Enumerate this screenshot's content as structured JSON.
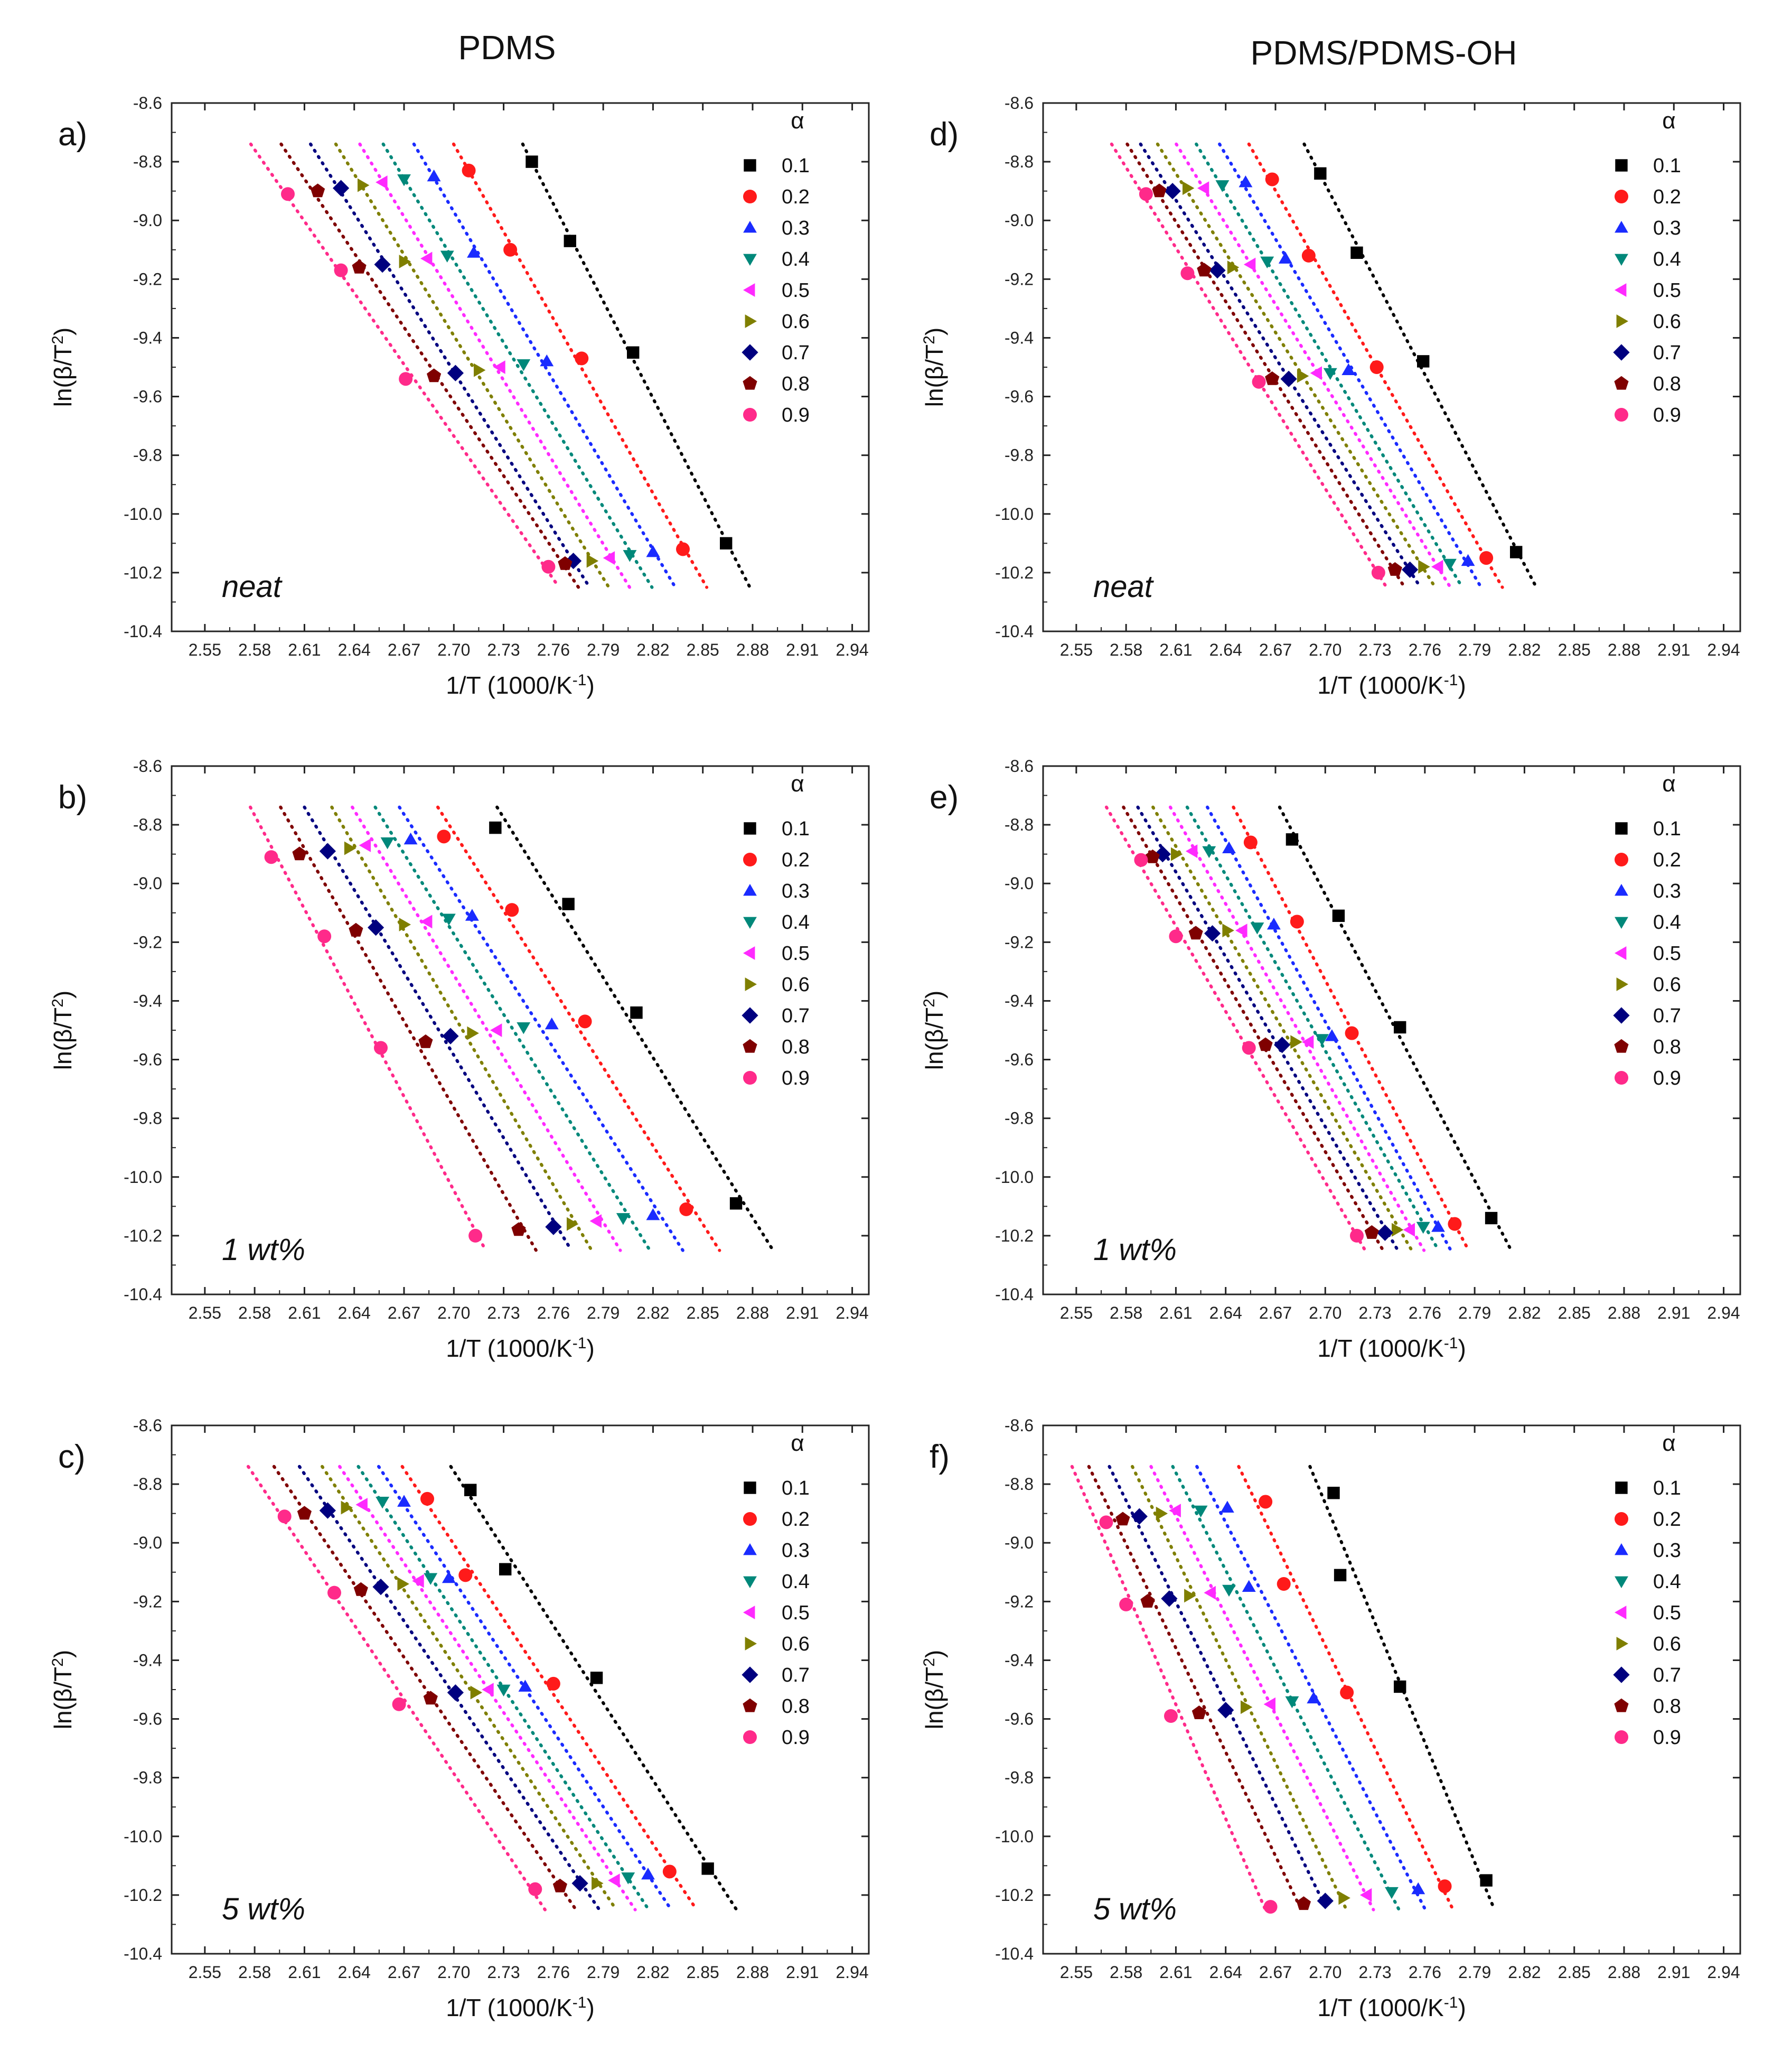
{
  "columns": [
    "PDMS",
    "PDMS/PDMS-OH"
  ],
  "legend": {
    "title": "α",
    "alpha": [
      "0.1",
      "0.2",
      "0.3",
      "0.4",
      "0.5",
      "0.6",
      "0.7",
      "0.8",
      "0.9"
    ],
    "colors": [
      "#000000",
      "#ff1a1a",
      "#1a2bff",
      "#00887a",
      "#ff2aff",
      "#7f7f00",
      "#00007f",
      "#7f0000",
      "#ff2a8a"
    ],
    "markers": [
      "square",
      "circle",
      "triangle-up",
      "triangle-down",
      "triangle-left",
      "triangle-right",
      "diamond",
      "pentagon",
      "circle"
    ]
  },
  "chart_data": [
    {
      "type": "scatter",
      "panel": "a)",
      "annotation": "neat",
      "column": 0,
      "row": 0,
      "xlabel": "1/T (1000/K-1)",
      "ylabel": "ln(β/T2)",
      "xlim": [
        2.53,
        2.95
      ],
      "ylim": [
        -10.4,
        -8.6
      ],
      "xticks": [
        "2.55",
        "2.58",
        "2.61",
        "2.64",
        "2.67",
        "2.70",
        "2.73",
        "2.76",
        "2.79",
        "2.82",
        "2.85",
        "2.88",
        "2.91",
        "2.94"
      ],
      "yticks": [
        "-8.6",
        "-8.8",
        "-9.0",
        "-9.2",
        "-9.4",
        "-9.6",
        "-9.8",
        "-10.0",
        "-10.2",
        "-10.4"
      ],
      "legend_position": "top-right",
      "series": [
        {
          "name": "0.1",
          "x": [
            2.747,
            2.77,
            2.808,
            2.864
          ],
          "y": [
            -8.8,
            -9.07,
            -9.45,
            -10.1
          ]
        },
        {
          "name": "0.2",
          "x": [
            2.709,
            2.734,
            2.777,
            2.838
          ],
          "y": [
            -8.83,
            -9.1,
            -9.47,
            -10.12
          ]
        },
        {
          "name": "0.3",
          "x": [
            2.688,
            2.712,
            2.756,
            2.82
          ],
          "y": [
            -8.85,
            -9.11,
            -9.48,
            -10.13
          ]
        },
        {
          "name": "0.4",
          "x": [
            2.67,
            2.696,
            2.742,
            2.806
          ],
          "y": [
            -8.86,
            -9.12,
            -9.49,
            -10.14
          ]
        },
        {
          "name": "0.5",
          "x": [
            2.657,
            2.684,
            2.728,
            2.794
          ],
          "y": [
            -8.87,
            -9.13,
            -9.5,
            -10.15
          ]
        },
        {
          "name": "0.6",
          "x": [
            2.645,
            2.67,
            2.715,
            2.783
          ],
          "y": [
            -8.88,
            -9.14,
            -9.51,
            -10.16
          ]
        },
        {
          "name": "0.7",
          "x": [
            2.632,
            2.657,
            2.701,
            2.772
          ],
          "y": [
            -8.89,
            -9.15,
            -9.52,
            -10.16
          ]
        },
        {
          "name": "0.8",
          "x": [
            2.618,
            2.643,
            2.688,
            2.767
          ],
          "y": [
            -8.9,
            -9.16,
            -9.53,
            -10.17
          ]
        },
        {
          "name": "0.9",
          "x": [
            2.6,
            2.632,
            2.671,
            2.757
          ],
          "y": [
            -8.91,
            -9.17,
            -9.54,
            -10.18
          ]
        }
      ]
    },
    {
      "type": "scatter",
      "panel": "b)",
      "annotation": "1 wt%",
      "column": 0,
      "row": 1,
      "xlabel": "1/T (1000/K-1)",
      "ylabel": "ln(β/T2)",
      "xlim": [
        2.53,
        2.95
      ],
      "ylim": [
        -10.4,
        -8.6
      ],
      "xticks": [
        "2.55",
        "2.58",
        "2.61",
        "2.64",
        "2.67",
        "2.70",
        "2.73",
        "2.76",
        "2.79",
        "2.82",
        "2.85",
        "2.88",
        "2.91",
        "2.94"
      ],
      "yticks": [
        "-8.6",
        "-8.8",
        "-9.0",
        "-9.2",
        "-9.4",
        "-9.6",
        "-9.8",
        "-10.0",
        "-10.2",
        "-10.4"
      ],
      "legend_position": "top-right",
      "series": [
        {
          "name": "0.1",
          "x": [
            2.725,
            2.769,
            2.81,
            2.87
          ],
          "y": [
            -8.81,
            -9.07,
            -9.44,
            -10.09
          ]
        },
        {
          "name": "0.2",
          "x": [
            2.694,
            2.735,
            2.779,
            2.84
          ],
          "y": [
            -8.84,
            -9.09,
            -9.47,
            -10.11
          ]
        },
        {
          "name": "0.3",
          "x": [
            2.674,
            2.711,
            2.759,
            2.82
          ],
          "y": [
            -8.85,
            -9.11,
            -9.48,
            -10.13
          ]
        },
        {
          "name": "0.4",
          "x": [
            2.66,
            2.697,
            2.742,
            2.802
          ],
          "y": [
            -8.86,
            -9.12,
            -9.49,
            -10.14
          ]
        },
        {
          "name": "0.5",
          "x": [
            2.647,
            2.684,
            2.726,
            2.786
          ],
          "y": [
            -8.87,
            -9.13,
            -9.5,
            -10.15
          ]
        },
        {
          "name": "0.6",
          "x": [
            2.637,
            2.67,
            2.711,
            2.771
          ],
          "y": [
            -8.88,
            -9.14,
            -9.51,
            -10.16
          ]
        },
        {
          "name": "0.7",
          "x": [
            2.624,
            2.653,
            2.698,
            2.76
          ],
          "y": [
            -8.89,
            -9.15,
            -9.52,
            -10.17
          ]
        },
        {
          "name": "0.8",
          "x": [
            2.607,
            2.641,
            2.683,
            2.739
          ],
          "y": [
            -8.9,
            -9.16,
            -9.54,
            -10.18
          ]
        },
        {
          "name": "0.9",
          "x": [
            2.59,
            2.622,
            2.656,
            2.713
          ],
          "y": [
            -8.91,
            -9.18,
            -9.56,
            -10.2
          ]
        }
      ]
    },
    {
      "type": "scatter",
      "panel": "c)",
      "annotation": "5 wt%",
      "column": 0,
      "row": 2,
      "xlabel": "1/T (1000/K-1)",
      "ylabel": "ln(β/T2)",
      "xlim": [
        2.53,
        2.95
      ],
      "ylim": [
        -10.4,
        -8.6
      ],
      "xticks": [
        "2.55",
        "2.58",
        "2.61",
        "2.64",
        "2.67",
        "2.70",
        "2.73",
        "2.76",
        "2.79",
        "2.82",
        "2.85",
        "2.88",
        "2.91",
        "2.94"
      ],
      "yticks": [
        "-8.6",
        "-8.8",
        "-9.0",
        "-9.2",
        "-9.4",
        "-9.6",
        "-9.8",
        "-10.0",
        "-10.2",
        "-10.4"
      ],
      "legend_position": "top-right",
      "series": [
        {
          "name": "0.1",
          "x": [
            2.71,
            2.731,
            2.786,
            2.853
          ],
          "y": [
            -8.82,
            -9.09,
            -9.46,
            -10.11
          ]
        },
        {
          "name": "0.2",
          "x": [
            2.684,
            2.707,
            2.76,
            2.83
          ],
          "y": [
            -8.85,
            -9.11,
            -9.48,
            -10.12
          ]
        },
        {
          "name": "0.3",
          "x": [
            2.67,
            2.697,
            2.743,
            2.817
          ],
          "y": [
            -8.86,
            -9.12,
            -9.49,
            -10.13
          ]
        },
        {
          "name": "0.4",
          "x": [
            2.657,
            2.686,
            2.73,
            2.805
          ],
          "y": [
            -8.86,
            -9.12,
            -9.5,
            -10.14
          ]
        },
        {
          "name": "0.5",
          "x": [
            2.645,
            2.679,
            2.721,
            2.797
          ],
          "y": [
            -8.87,
            -9.13,
            -9.5,
            -10.15
          ]
        },
        {
          "name": "0.6",
          "x": [
            2.635,
            2.669,
            2.713,
            2.786
          ],
          "y": [
            -8.88,
            -9.14,
            -9.51,
            -10.16
          ]
        },
        {
          "name": "0.7",
          "x": [
            2.624,
            2.656,
            2.701,
            2.776
          ],
          "y": [
            -8.89,
            -9.15,
            -9.51,
            -10.16
          ]
        },
        {
          "name": "0.8",
          "x": [
            2.61,
            2.644,
            2.686,
            2.764
          ],
          "y": [
            -8.9,
            -9.16,
            -9.53,
            -10.17
          ]
        },
        {
          "name": "0.9",
          "x": [
            2.598,
            2.628,
            2.667,
            2.749
          ],
          "y": [
            -8.91,
            -9.17,
            -9.55,
            -10.18
          ]
        }
      ]
    },
    {
      "type": "scatter",
      "panel": "d)",
      "annotation": "neat",
      "column": 1,
      "row": 0,
      "xlabel": "1/T (1000/K-1)",
      "ylabel": "ln(β/T2)",
      "xlim": [
        2.53,
        2.95
      ],
      "ylim": [
        -10.4,
        -8.6
      ],
      "xticks": [
        "2.55",
        "2.58",
        "2.61",
        "2.64",
        "2.67",
        "2.70",
        "2.73",
        "2.76",
        "2.79",
        "2.82",
        "2.85",
        "2.88",
        "2.91",
        "2.94"
      ],
      "yticks": [
        "-8.6",
        "-8.8",
        "-9.0",
        "-9.2",
        "-9.4",
        "-9.6",
        "-9.8",
        "-10.0",
        "-10.2",
        "-10.4"
      ],
      "legend_position": "top-right",
      "series": [
        {
          "name": "0.1",
          "x": [
            2.697,
            2.719,
            2.759,
            2.815
          ],
          "y": [
            -8.84,
            -9.11,
            -9.48,
            -10.13
          ]
        },
        {
          "name": "0.2",
          "x": [
            2.668,
            2.69,
            2.731,
            2.797
          ],
          "y": [
            -8.86,
            -9.12,
            -9.5,
            -10.15
          ]
        },
        {
          "name": "0.3",
          "x": [
            2.652,
            2.676,
            2.714,
            2.786
          ],
          "y": [
            -8.87,
            -9.13,
            -9.51,
            -10.16
          ]
        },
        {
          "name": "0.4",
          "x": [
            2.638,
            2.665,
            2.703,
            2.775
          ],
          "y": [
            -8.88,
            -9.14,
            -9.52,
            -10.17
          ]
        },
        {
          "name": "0.5",
          "x": [
            2.627,
            2.655,
            2.695,
            2.768
          ],
          "y": [
            -8.89,
            -9.15,
            -9.52,
            -10.18
          ]
        },
        {
          "name": "0.6",
          "x": [
            2.617,
            2.644,
            2.686,
            2.759
          ],
          "y": [
            -8.89,
            -9.16,
            -9.53,
            -10.18
          ]
        },
        {
          "name": "0.7",
          "x": [
            2.608,
            2.635,
            2.678,
            2.751
          ],
          "y": [
            -8.9,
            -9.17,
            -9.54,
            -10.19
          ]
        },
        {
          "name": "0.8",
          "x": [
            2.6,
            2.627,
            2.668,
            2.742
          ],
          "y": [
            -8.9,
            -9.17,
            -9.54,
            -10.19
          ]
        },
        {
          "name": "0.9",
          "x": [
            2.592,
            2.617,
            2.66,
            2.732
          ],
          "y": [
            -8.91,
            -9.18,
            -9.55,
            -10.2
          ]
        }
      ]
    },
    {
      "type": "scatter",
      "panel": "e)",
      "annotation": "1 wt%",
      "column": 1,
      "row": 1,
      "xlabel": "1/T (1000/K-1)",
      "ylabel": "ln(β/T2)",
      "xlim": [
        2.53,
        2.95
      ],
      "ylim": [
        -10.4,
        -8.6
      ],
      "xticks": [
        "2.55",
        "2.58",
        "2.61",
        "2.64",
        "2.67",
        "2.70",
        "2.73",
        "2.76",
        "2.79",
        "2.82",
        "2.85",
        "2.88",
        "2.91",
        "2.94"
      ],
      "yticks": [
        "-8.6",
        "-8.8",
        "-9.0",
        "-9.2",
        "-9.4",
        "-9.6",
        "-9.8",
        "-10.0",
        "-10.2",
        "-10.4"
      ],
      "legend_position": "top-right",
      "series": [
        {
          "name": "0.1",
          "x": [
            2.68,
            2.708,
            2.745,
            2.8
          ],
          "y": [
            -8.85,
            -9.11,
            -9.49,
            -10.14
          ]
        },
        {
          "name": "0.2",
          "x": [
            2.655,
            2.683,
            2.716,
            2.778
          ],
          "y": [
            -8.86,
            -9.13,
            -9.51,
            -10.16
          ]
        },
        {
          "name": "0.3",
          "x": [
            2.642,
            2.669,
            2.704,
            2.768
          ],
          "y": [
            -8.88,
            -9.14,
            -9.52,
            -10.17
          ]
        },
        {
          "name": "0.4",
          "x": [
            2.63,
            2.659,
            2.698,
            2.759
          ],
          "y": [
            -8.89,
            -9.15,
            -9.53,
            -10.17
          ]
        },
        {
          "name": "0.5",
          "x": [
            2.62,
            2.65,
            2.69,
            2.751
          ],
          "y": [
            -8.89,
            -9.16,
            -9.54,
            -10.18
          ]
        },
        {
          "name": "0.6",
          "x": [
            2.61,
            2.641,
            2.682,
            2.743
          ],
          "y": [
            -8.9,
            -9.16,
            -9.54,
            -10.18
          ]
        },
        {
          "name": "0.7",
          "x": [
            2.602,
            2.632,
            2.674,
            2.736
          ],
          "y": [
            -8.9,
            -9.17,
            -9.55,
            -10.19
          ]
        },
        {
          "name": "0.8",
          "x": [
            2.596,
            2.622,
            2.664,
            2.728
          ],
          "y": [
            -8.91,
            -9.17,
            -9.55,
            -10.19
          ]
        },
        {
          "name": "0.9",
          "x": [
            2.589,
            2.61,
            2.654,
            2.719
          ],
          "y": [
            -8.92,
            -9.18,
            -9.56,
            -10.2
          ]
        }
      ]
    },
    {
      "type": "scatter",
      "panel": "f)",
      "annotation": "5 wt%",
      "column": 1,
      "row": 2,
      "xlabel": "1/T (1000/K-1)",
      "ylabel": "ln(β/T2)",
      "xlim": [
        2.53,
        2.95
      ],
      "ylim": [
        -10.4,
        -8.6
      ],
      "xticks": [
        "2.55",
        "2.58",
        "2.61",
        "2.64",
        "2.67",
        "2.70",
        "2.73",
        "2.76",
        "2.79",
        "2.82",
        "2.85",
        "2.88",
        "2.91",
        "2.94"
      ],
      "yticks": [
        "-8.6",
        "-8.8",
        "-9.0",
        "-9.2",
        "-9.4",
        "-9.6",
        "-9.8",
        "-10.0",
        "-10.2",
        "-10.4"
      ],
      "legend_position": "top-right",
      "series": [
        {
          "name": "0.1",
          "x": [
            2.705,
            2.709,
            2.745,
            2.797
          ],
          "y": [
            -8.83,
            -9.11,
            -9.49,
            -10.15
          ]
        },
        {
          "name": "0.2",
          "x": [
            2.664,
            2.675,
            2.713,
            2.772
          ],
          "y": [
            -8.86,
            -9.14,
            -9.51,
            -10.17
          ]
        },
        {
          "name": "0.3",
          "x": [
            2.641,
            2.654,
            2.693,
            2.756
          ],
          "y": [
            -8.88,
            -9.15,
            -9.53,
            -10.18
          ]
        },
        {
          "name": "0.4",
          "x": [
            2.625,
            2.642,
            2.68,
            2.74
          ],
          "y": [
            -8.89,
            -9.16,
            -9.54,
            -10.19
          ]
        },
        {
          "name": "0.5",
          "x": [
            2.61,
            2.631,
            2.667,
            2.725
          ],
          "y": [
            -8.89,
            -9.17,
            -9.55,
            -10.2
          ]
        },
        {
          "name": "0.6",
          "x": [
            2.601,
            2.618,
            2.652,
            2.711
          ],
          "y": [
            -8.9,
            -9.18,
            -9.56,
            -10.21
          ]
        },
        {
          "name": "0.7",
          "x": [
            2.588,
            2.606,
            2.64,
            2.7
          ],
          "y": [
            -8.91,
            -9.19,
            -9.57,
            -10.22
          ]
        },
        {
          "name": "0.8",
          "x": [
            2.578,
            2.593,
            2.624,
            2.687
          ],
          "y": [
            -8.92,
            -9.2,
            -9.58,
            -10.23
          ]
        },
        {
          "name": "0.9",
          "x": [
            2.568,
            2.58,
            2.607,
            2.667
          ],
          "y": [
            -8.93,
            -9.21,
            -9.59,
            -10.24
          ]
        }
      ]
    }
  ]
}
